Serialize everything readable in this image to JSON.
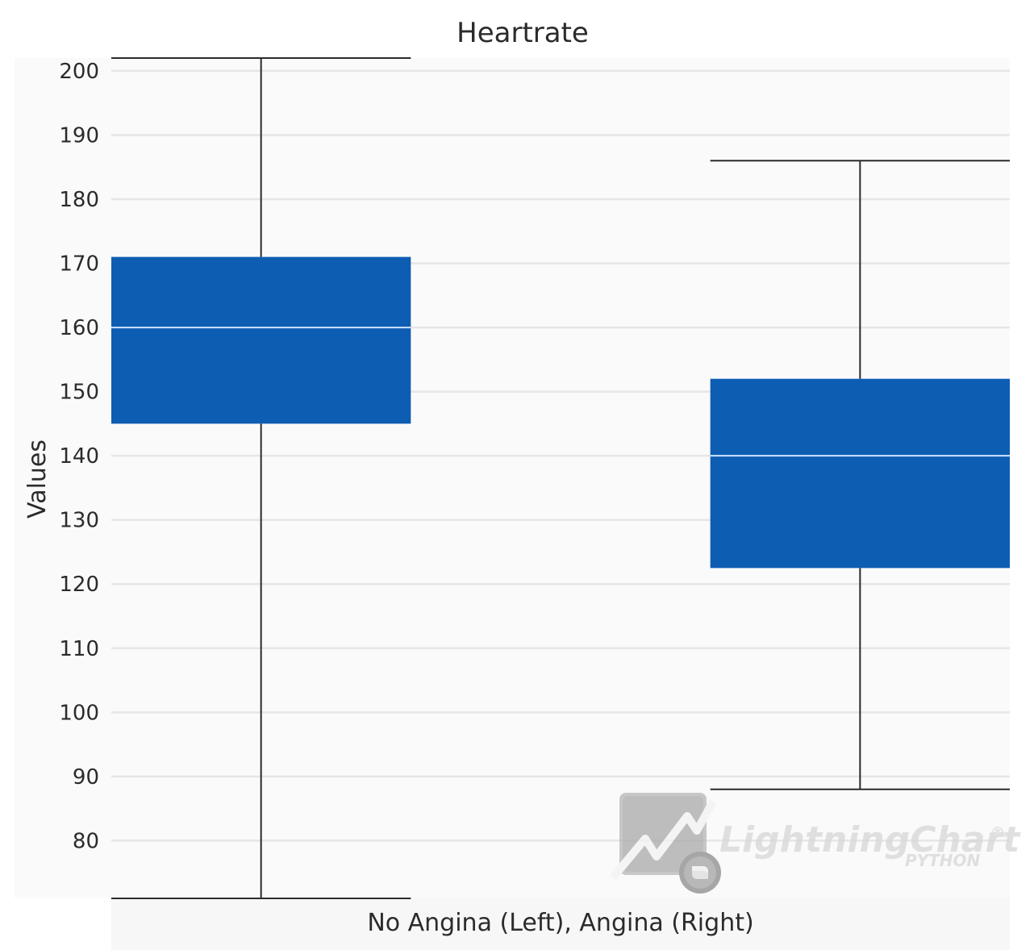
{
  "chart_data": {
    "type": "box",
    "title": "Heartrate",
    "xlabel": "No Angina (Left), Angina (Right)",
    "ylabel": "Values",
    "ylim": [
      71,
      202
    ],
    "yticks": [
      80,
      90,
      100,
      110,
      120,
      130,
      140,
      150,
      160,
      170,
      180,
      190,
      200
    ],
    "grid": true,
    "series": [
      {
        "category": "No Angina",
        "position": "left",
        "min": 71,
        "q1": 145,
        "median": 160,
        "q3": 171,
        "max": 202
      },
      {
        "category": "Angina",
        "position": "right",
        "min": 88,
        "q1": 122.5,
        "median": 140,
        "q3": 152,
        "max": 186
      }
    ],
    "box_color": "#0d5db3",
    "median_color": "#cfe4ff",
    "whisker_color": "#2b2b2b",
    "grid_color": "#e6e6e6"
  },
  "watermark": {
    "brand": "LightningChart",
    "registered": "®",
    "sub": "PYTHON",
    "logo_icon": "lightningchart-logo-icon"
  }
}
